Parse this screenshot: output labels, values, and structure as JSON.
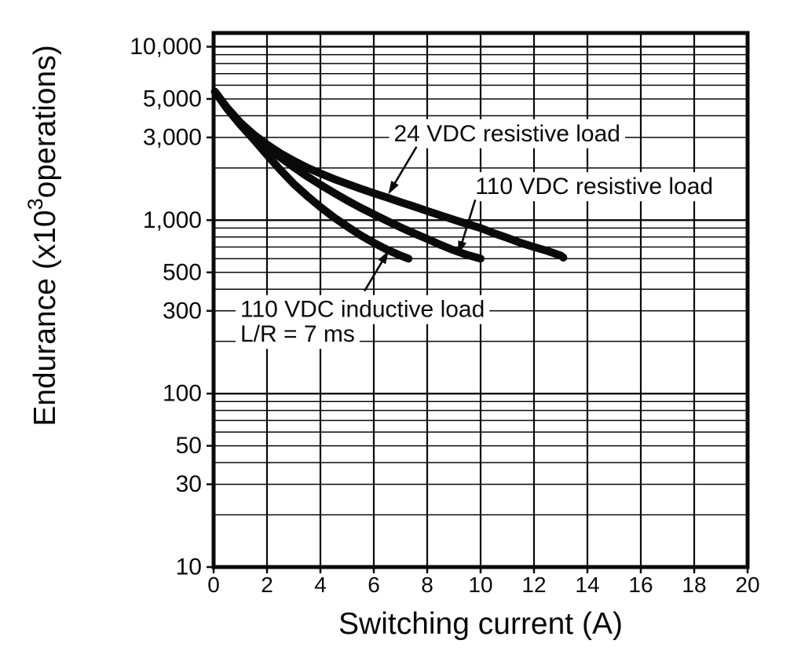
{
  "page": {
    "background": "#ffffff",
    "ink": "#0a0a0a"
  },
  "chart_data": {
    "type": "line",
    "title": "",
    "x_axis": {
      "label": "Switching current (A)",
      "min": 0,
      "max": 20,
      "ticks": [
        0,
        2,
        4,
        6,
        8,
        10,
        12,
        14,
        16,
        18,
        20
      ],
      "gridline_step": 2
    },
    "y_axis": {
      "label_pre": "Endurance (x10",
      "label_sup": "3",
      "label_post": "operations)",
      "scale": "log",
      "min": 10,
      "max": 12000,
      "grid": "log minor lines 1-9 each decade",
      "ticks": [
        {
          "label": "10,000",
          "value": 10000
        },
        {
          "label": "5,000",
          "value": 5000
        },
        {
          "label": "3,000",
          "value": 3000
        },
        {
          "label": "1,000",
          "value": 1000
        },
        {
          "label": "500",
          "value": 500
        },
        {
          "label": "300",
          "value": 300
        },
        {
          "label": "100",
          "value": 100
        },
        {
          "label": "50",
          "value": 50
        },
        {
          "label": "30",
          "value": 30
        },
        {
          "label": "10",
          "value": 10
        }
      ]
    },
    "legend_position": "inline-annotations",
    "series": [
      {
        "name": "24 VDC resistive load",
        "points": [
          [
            0.05,
            5500
          ],
          [
            0.5,
            4450
          ],
          [
            1,
            3650
          ],
          [
            1.5,
            3120
          ],
          [
            2,
            2730
          ],
          [
            2.5,
            2430
          ],
          [
            3,
            2200
          ],
          [
            3.5,
            2010
          ],
          [
            4,
            1860
          ],
          [
            4.5,
            1730
          ],
          [
            5,
            1620
          ],
          [
            5.5,
            1520
          ],
          [
            6,
            1430
          ],
          [
            6.5,
            1350
          ],
          [
            7,
            1270
          ],
          [
            7.5,
            1200
          ],
          [
            8,
            1130
          ],
          [
            8.5,
            1065
          ],
          [
            9,
            1005
          ],
          [
            9.5,
            950
          ],
          [
            10,
            900
          ],
          [
            10.5,
            840
          ],
          [
            11,
            790
          ],
          [
            11.5,
            740
          ],
          [
            12,
            700
          ],
          [
            12.5,
            665
          ],
          [
            13,
            625
          ],
          [
            13.1,
            608
          ]
        ]
      },
      {
        "name": "110 VDC resistive load",
        "points": [
          [
            0.05,
            5500
          ],
          [
            0.5,
            4450
          ],
          [
            1,
            3650
          ],
          [
            1.5,
            3080
          ],
          [
            2,
            2650
          ],
          [
            2.5,
            2300
          ],
          [
            3,
            2020
          ],
          [
            3.5,
            1790
          ],
          [
            4,
            1600
          ],
          [
            4.5,
            1440
          ],
          [
            5,
            1300
          ],
          [
            5.5,
            1180
          ],
          [
            6,
            1080
          ],
          [
            6.5,
            990
          ],
          [
            7,
            910
          ],
          [
            7.5,
            840
          ],
          [
            8,
            780
          ],
          [
            8.5,
            720
          ],
          [
            9,
            670
          ],
          [
            9.5,
            630
          ],
          [
            10,
            600
          ]
        ]
      },
      {
        "name": "110 VDC inductive load L/R = 7 ms",
        "points": [
          [
            0.05,
            5500
          ],
          [
            0.5,
            4400
          ],
          [
            1,
            3550
          ],
          [
            1.5,
            2920
          ],
          [
            2,
            2380
          ],
          [
            2.5,
            1950
          ],
          [
            3,
            1620
          ],
          [
            3.5,
            1380
          ],
          [
            4,
            1190
          ],
          [
            4.5,
            1040
          ],
          [
            5,
            920
          ],
          [
            5.5,
            820
          ],
          [
            6,
            740
          ],
          [
            6.5,
            675
          ],
          [
            7,
            625
          ],
          [
            7.3,
            600
          ]
        ]
      }
    ],
    "annotations": [
      {
        "id": "label-24-vdc-resistive",
        "lines": [
          "24 VDC resistive load"
        ],
        "at": [
          6.75,
          3150
        ],
        "arrow": {
          "from": [
            7.6,
            2650
          ],
          "to": [
            6.6,
            1460
          ]
        }
      },
      {
        "id": "label-110-vdc-resistive",
        "lines": [
          "110 VDC resistive load"
        ],
        "at": [
          9.8,
          1560
        ],
        "arrow": {
          "from": [
            9.8,
            1310
          ],
          "to": [
            9.2,
            660
          ]
        }
      },
      {
        "id": "label-110-vdc-inductive",
        "lines": [
          "110 VDC inductive load",
          "L/R = 7 ms"
        ],
        "at": [
          1.0,
          305
        ],
        "arrow": {
          "from": [
            5.65,
            390
          ],
          "to": [
            6.5,
            645
          ]
        }
      }
    ]
  }
}
